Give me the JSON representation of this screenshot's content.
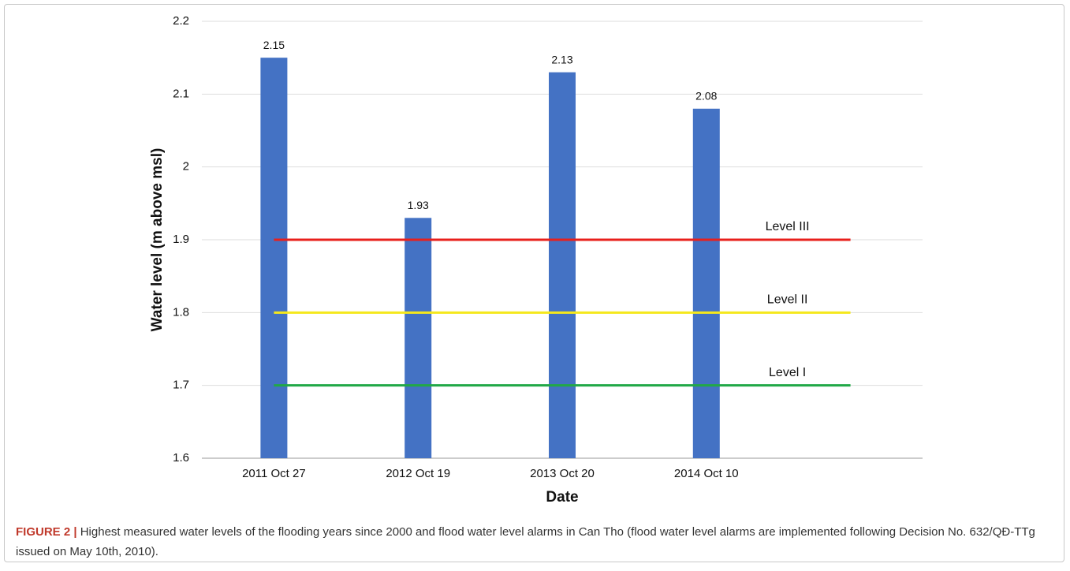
{
  "chart_data": {
    "type": "bar",
    "categories": [
      "2011 Oct 27",
      "2012 Oct 19",
      "2013 Oct 20",
      "2014 Oct 10",
      null
    ],
    "values": [
      2.15,
      1.93,
      2.13,
      2.08,
      null
    ],
    "color": "#4472c4",
    "x_label": "Date",
    "y_label": "Water level (m above msl)",
    "ylim": [
      1.6,
      2.2
    ],
    "yticks": [
      1.6,
      1.7,
      1.8,
      1.9,
      2,
      2.1,
      2.2
    ],
    "grid": true,
    "reference_lines": [
      {
        "name": "Level III",
        "value": 1.9,
        "color": "#e8201c"
      },
      {
        "name": "Level II",
        "value": 1.8,
        "color": "#f5e81c"
      },
      {
        "name": "Level I",
        "value": 1.7,
        "color": "#21a847"
      }
    ]
  },
  "caption": {
    "label": "FIGURE 2 |",
    "text": "Highest measured water levels of the flooding years since 2000 and flood water level alarms in Can Tho (flood water level alarms are implemented following Decision No. 632/QĐ-TTg issued on May 10th, 2010)."
  }
}
